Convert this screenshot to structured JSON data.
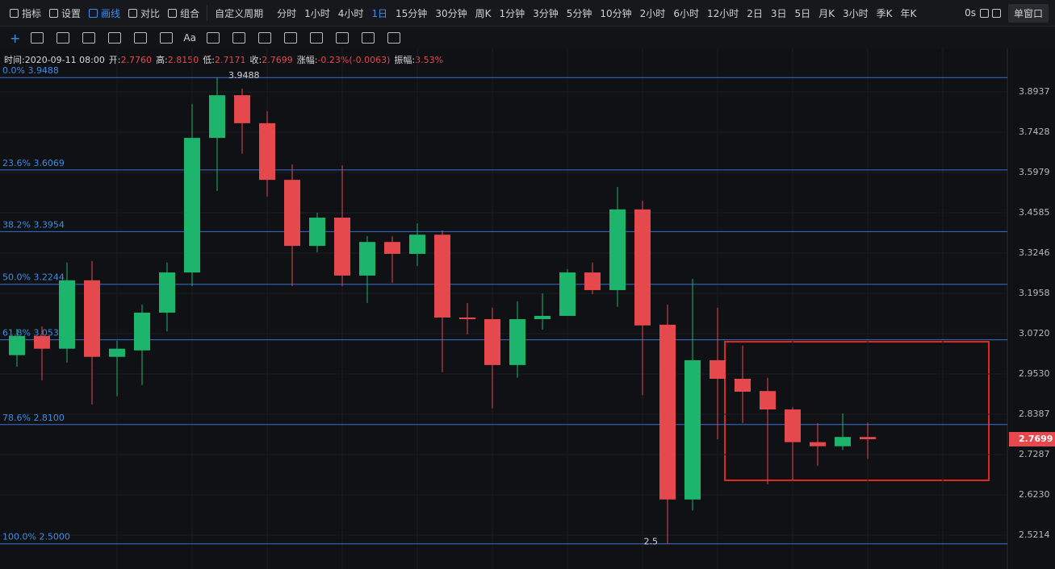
{
  "toolbar": {
    "tools": [
      "指标",
      "设置",
      "画线",
      "对比",
      "组合"
    ],
    "active_tool_index": 2,
    "custom_period": "自定义周期",
    "periods": [
      "分时",
      "1小时",
      "4小时",
      "1日",
      "15分钟",
      "30分钟",
      "周K",
      "1分钟",
      "3分钟",
      "5分钟",
      "10分钟",
      "2小时",
      "6小时",
      "12小时",
      "2日",
      "3日",
      "5日",
      "月K",
      "3小时",
      "季K",
      "年K"
    ],
    "active_period_index": 3,
    "timer": "0s",
    "window": "单窗口"
  },
  "drawing_toolbar": {
    "font_tool": "Aa"
  },
  "info": {
    "time": "时间:2020-09-11 08:00",
    "fields": [
      {
        "label": "开:",
        "value": "2.7760"
      },
      {
        "label": "高:",
        "value": "2.8150"
      },
      {
        "label": "低:",
        "value": "2.7171"
      },
      {
        "label": "收:",
        "value": "2.7699"
      },
      {
        "label": "涨幅:",
        "value": "-0.23%(-0.0063)"
      },
      {
        "label": "振幅:",
        "value": "3.53%"
      }
    ]
  },
  "chart_data": {
    "type": "candlestick",
    "log_scale": true,
    "ylim": [
      2.439,
      3.984
    ],
    "yticks": [
      3.8937,
      3.7428,
      3.5979,
      3.4585,
      3.3246,
      3.1958,
      {
        "value": 3.072,
        "label": "3.0720"
      },
      {
        "value": 2.953,
        "label": "2.9530"
      },
      2.8387,
      2.7287,
      {
        "value": 2.623,
        "label": "2.6230"
      },
      2.5214
    ],
    "up_color": "#1db46c",
    "down_color": "#e5484d",
    "open": [
      3.008,
      3.065,
      3.027,
      3.237,
      3.003,
      3.022,
      3.136,
      3.262,
      3.722,
      3.881,
      3.776,
      3.572,
      3.348,
      3.442,
      3.252,
      3.361,
      3.322,
      3.385,
      3.121,
      3.116,
      2.979,
      3.116,
      3.126,
      3.262,
      3.206,
      3.47,
      3.099,
      2.611,
      2.993,
      2.939,
      2.904,
      2.852,
      2.762,
      2.751,
      2.776
    ],
    "high": [
      3.087,
      3.094,
      3.294,
      3.299,
      3.051,
      3.161,
      3.294,
      3.848,
      3.9488,
      3.906,
      3.821,
      3.626,
      3.4585,
      3.623,
      3.38,
      3.38,
      3.423,
      3.399,
      3.166,
      3.151,
      3.171,
      3.1958,
      3.272,
      3.294,
      3.547,
      3.5,
      3.161,
      3.242,
      3.151,
      3.037,
      2.942,
      2.858,
      2.814,
      2.841,
      2.815
    ],
    "low": [
      2.974,
      2.935,
      2.986,
      2.866,
      2.889,
      2.921,
      3.079,
      3.219,
      3.533,
      3.665,
      3.514,
      3.219,
      3.327,
      3.219,
      3.166,
      3.229,
      3.283,
      2.958,
      3.07,
      2.855,
      2.942,
      3.084,
      3.126,
      3.193,
      3.154,
      2.892,
      2.5,
      2.583,
      2.77,
      2.814,
      2.65,
      2.66,
      2.699,
      2.741,
      2.7171
    ],
    "close": [
      3.065,
      3.027,
      3.237,
      3.003,
      3.027,
      3.136,
      3.262,
      3.722,
      3.881,
      3.776,
      3.572,
      3.348,
      3.442,
      3.252,
      3.361,
      3.322,
      3.385,
      3.121,
      3.116,
      2.979,
      3.116,
      3.126,
      3.262,
      3.206,
      3.47,
      3.097,
      2.611,
      2.993,
      2.939,
      2.902,
      2.852,
      2.762,
      2.751,
      2.776,
      2.7699
    ],
    "fib_levels": [
      {
        "label": "0.0% 3.9488",
        "value": 3.9488
      },
      {
        "label": "23.6% 3.6069",
        "value": 3.6069
      },
      {
        "label": "38.2% 3.3954",
        "value": 3.3954
      },
      {
        "label": "50.0% 3.2244",
        "value": 3.2244
      },
      {
        "label": "61.8% 3.0534",
        "value": 3.0534
      },
      {
        "label": "78.6% 2.8100",
        "value": 2.81
      },
      {
        "label": "100.0% 2.5000",
        "value": 2.5
      }
    ],
    "high_label": "3.9488",
    "low_label": "2.5"
  }
}
